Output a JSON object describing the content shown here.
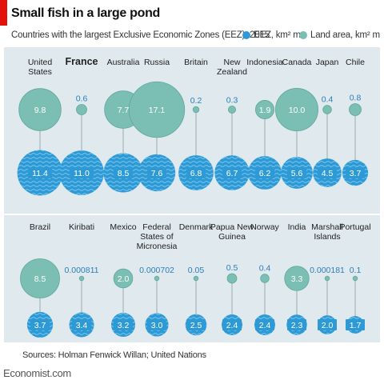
{
  "header": {
    "title": "Small fish in a large pond",
    "subtitle": "Countries with the largest Exclusive Economic Zones (EEZ), 2015"
  },
  "legend": {
    "eez_label": "EEZ, km² m",
    "land_label": "Land area, km² m"
  },
  "colors": {
    "eez": "#2d9ad6",
    "eez_wave": "#7cc6ec",
    "land": "#7bbfb4",
    "land_stroke": "#5fa79b",
    "panel": "#dfe9ee",
    "brand_red": "#e3120b"
  },
  "footer": {
    "source": "Sources: Holman Fenwick Willan; United Nations",
    "logo": "Economist.com"
  },
  "chart_data": {
    "type": "bubble",
    "title": "Small fish in a large pond",
    "subtitle": "Countries with the largest Exclusive Economic Zones (EEZ), 2015",
    "series": [
      {
        "name": "EEZ, km² m",
        "values": [
          11.4,
          11.0,
          8.5,
          7.6,
          6.8,
          6.7,
          6.2,
          5.6,
          4.5,
          3.7,
          3.7,
          3.4,
          3.2,
          3.0,
          2.5,
          2.4,
          2.4,
          2.3,
          2.0,
          1.7
        ]
      },
      {
        "name": "Land area, km² m",
        "values": [
          9.8,
          0.6,
          7.7,
          17.1,
          0.2,
          0.3,
          1.9,
          10.0,
          0.4,
          0.8,
          8.5,
          0.000811,
          2.0,
          0.000702,
          0.05,
          0.5,
          0.4,
          3.3,
          0.000181,
          0.1
        ]
      }
    ],
    "rows": [
      {
        "countries": [
          {
            "name": "United States",
            "eez": 11.4,
            "eez_label": "11.4",
            "land": 9.8,
            "land_label": "9.8"
          },
          {
            "name": "France",
            "eez": 11.0,
            "eez_label": "11.0",
            "land": 0.6,
            "land_label": "0.6",
            "bold": true
          },
          {
            "name": "Australia",
            "eez": 8.5,
            "eez_label": "8.5",
            "land": 7.7,
            "land_label": "7.7"
          },
          {
            "name": "Russia",
            "eez": 7.6,
            "eez_label": "7.6",
            "land": 17.1,
            "land_label": "17.1"
          },
          {
            "name": "Britain",
            "eez": 6.8,
            "eez_label": "6.8",
            "land": 0.2,
            "land_label": "0.2"
          },
          {
            "name": "New Zealand",
            "eez": 6.7,
            "eez_label": "6.7",
            "land": 0.3,
            "land_label": "0.3"
          },
          {
            "name": "Indonesia",
            "eez": 6.2,
            "eez_label": "6.2",
            "land": 1.9,
            "land_label": "1.9"
          },
          {
            "name": "Canada",
            "eez": 5.6,
            "eez_label": "5.6",
            "land": 10.0,
            "land_label": "10.0"
          },
          {
            "name": "Japan",
            "eez": 4.5,
            "eez_label": "4.5",
            "land": 0.4,
            "land_label": "0.4"
          },
          {
            "name": "Chile",
            "eez": 3.7,
            "eez_label": "3.7",
            "land": 0.8,
            "land_label": "0.8"
          }
        ]
      },
      {
        "countries": [
          {
            "name": "Brazil",
            "eez": 3.7,
            "eez_label": "3.7",
            "land": 8.5,
            "land_label": "8.5"
          },
          {
            "name": "Kiribati",
            "eez": 3.4,
            "eez_label": "3.4",
            "land": 0.000811,
            "land_label": "0.000811"
          },
          {
            "name": "Mexico",
            "eez": 3.2,
            "eez_label": "3.2",
            "land": 2.0,
            "land_label": "2.0"
          },
          {
            "name": "Federal States of Micronesia",
            "eez": 3.0,
            "eez_label": "3.0",
            "land": 0.000702,
            "land_label": "0.000702"
          },
          {
            "name": "Denmark",
            "eez": 2.5,
            "eez_label": "2.5",
            "land": 0.05,
            "land_label": "0.05"
          },
          {
            "name": "Papua New Guinea",
            "eez": 2.4,
            "eez_label": "2.4",
            "land": 0.5,
            "land_label": "0.5"
          },
          {
            "name": "Norway",
            "eez": 2.4,
            "eez_label": "2.4",
            "land": 0.4,
            "land_label": "0.4"
          },
          {
            "name": "India",
            "eez": 2.3,
            "eez_label": "2.3",
            "land": 3.3,
            "land_label": "3.3"
          },
          {
            "name": "Marshall Islands",
            "eez": 2.0,
            "eez_label": "2.0",
            "land": 0.000181,
            "land_label": "0.000181"
          },
          {
            "name": "Portugal",
            "eez": 1.7,
            "eez_label": "1.7",
            "land": 0.1,
            "land_label": "0.1"
          }
        ]
      }
    ]
  }
}
